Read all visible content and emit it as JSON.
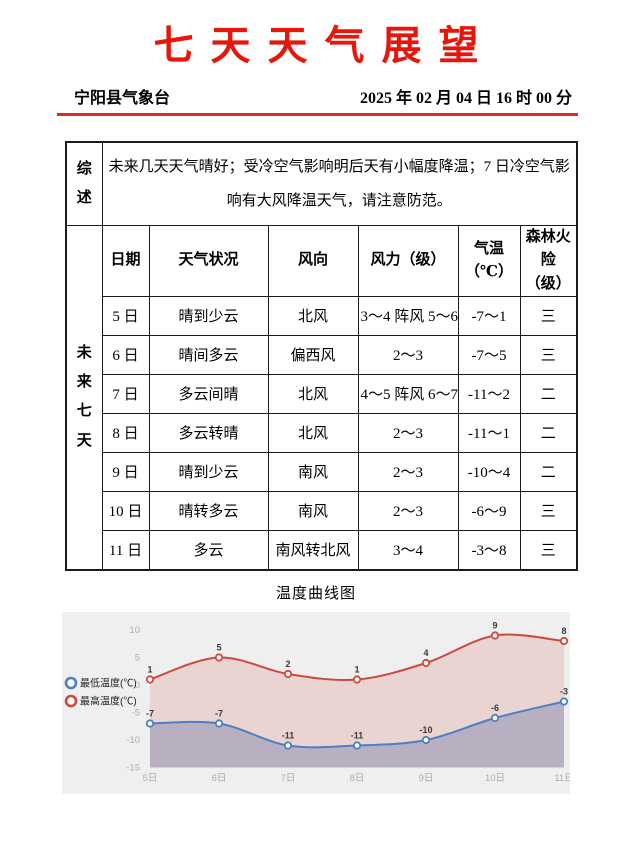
{
  "page": {
    "title": "七天天气展望",
    "station": "宁阳县气象台",
    "datetime": "2025 年 02 月 04 日 16 时 00 分"
  },
  "summary": {
    "label": "综述",
    "text": "未来几天天气晴好；受冷空气影响明后天有小幅度降温；7 日冷空气影响有大风降温天气，请注意防范。"
  },
  "forecast": {
    "label": "未来七天",
    "headers": {
      "date": "日期",
      "weather": "天气状况",
      "wind_dir": "风向",
      "wind_force": "风力（级）",
      "temp": "气温\n（℃）",
      "fire_risk": "森林火\n险（级）"
    },
    "rows": [
      {
        "date": "5 日",
        "weather": "晴到少云",
        "wind_dir": "北风",
        "wind_force": "3～4 阵风 5～6",
        "temp": "-7～1",
        "fire_risk": "三"
      },
      {
        "date": "6 日",
        "weather": "晴间多云",
        "wind_dir": "偏西风",
        "wind_force": "2～3",
        "temp": "-7～5",
        "fire_risk": "三"
      },
      {
        "date": "7 日",
        "weather": "多云间晴",
        "wind_dir": "北风",
        "wind_force": "4～5 阵风 6～7",
        "temp": "-11～2",
        "fire_risk": "二"
      },
      {
        "date": "8 日",
        "weather": "多云转晴",
        "wind_dir": "北风",
        "wind_force": "2～3",
        "temp": "-11～1",
        "fire_risk": "二"
      },
      {
        "date": "9 日",
        "weather": "晴到少云",
        "wind_dir": "南风",
        "wind_force": "2～3",
        "temp": "-10～4",
        "fire_risk": "二"
      },
      {
        "date": "10 日",
        "weather": "晴转多云",
        "wind_dir": "南风",
        "wind_force": "2～3",
        "temp": "-6～9",
        "fire_risk": "三"
      },
      {
        "date": "11 日",
        "weather": "多云",
        "wind_dir": "南风转北风",
        "wind_force": "3～4",
        "temp": "-3～8",
        "fire_risk": "三"
      }
    ]
  },
  "chart": {
    "caption": "温度曲线图"
  },
  "chart_data": {
    "type": "line",
    "title": "温度曲线图",
    "categories": [
      "5日",
      "6日",
      "7日",
      "8日",
      "9日",
      "10日",
      "11日"
    ],
    "series": [
      {
        "name": "最低温度(℃)",
        "values": [
          -7,
          -7,
          -11,
          -11,
          -10,
          -6,
          -3
        ],
        "color": "#4d7fc4",
        "fill": "rgba(90,105,160,0.34)"
      },
      {
        "name": "最高温度(℃)",
        "values": [
          1,
          5,
          2,
          1,
          4,
          9,
          8
        ],
        "color": "#cb4a3e",
        "fill": "rgba(203,74,62,0.16)"
      }
    ],
    "ylim": [
      -15,
      10
    ],
    "yticks": [
      10,
      5,
      0,
      -5,
      -10,
      -15
    ],
    "area": true,
    "smooth": true,
    "grid": false,
    "legend_position": "left",
    "colors": {
      "panel_bg": "#efefef",
      "tick_label": "#adadad",
      "data_label": "#3a3a3a",
      "legend_text": "#222222"
    }
  }
}
